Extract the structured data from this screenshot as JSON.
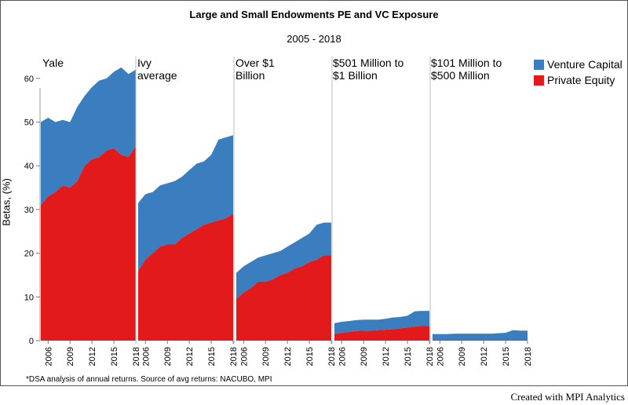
{
  "chart_data": {
    "type": "area",
    "title": "Large and Small Endowments PE and VC Exposure",
    "subtitle": "2005 - 2018",
    "ylabel": "Betas, (%)",
    "ylim": [
      0,
      65
    ],
    "yticks": [
      0,
      10,
      20,
      30,
      40,
      50,
      60
    ],
    "x": [
      2005,
      2006,
      2007,
      2008,
      2009,
      2010,
      2011,
      2012,
      2013,
      2014,
      2015,
      2016,
      2017,
      2018
    ],
    "xticks": [
      2006,
      2009,
      2012,
      2015,
      2018
    ],
    "stacked": true,
    "legend": [
      {
        "name": "Venture Capital",
        "color": "#3a7ebf"
      },
      {
        "name": "Private Equity",
        "color": "#e31a1c"
      }
    ],
    "panels": [
      {
        "label": "Yale",
        "series": [
          {
            "name": "Private Equity",
            "values": [
              31,
              33,
              34,
              35.5,
              35,
              36.5,
              40,
              41.5,
              42,
              43.5,
              44,
              42.5,
              42,
              44.5
            ]
          },
          {
            "name": "Venture Capital",
            "values": [
              19,
              18,
              16,
              15,
              15,
              17,
              16,
              16.5,
              17.5,
              16.5,
              17.5,
              20,
              19,
              17.5
            ]
          }
        ]
      },
      {
        "label": "Ivy\naverage",
        "series": [
          {
            "name": "Private Equity",
            "values": [
              16,
              18.5,
              20,
              21.5,
              22,
              22,
              23.5,
              24.5,
              25.5,
              26.5,
              27,
              27.5,
              28,
              29
            ]
          },
          {
            "name": "Venture Capital",
            "values": [
              15.5,
              15,
              14,
              14,
              14,
              14.5,
              14,
              14.5,
              15,
              14.5,
              15.5,
              18.5,
              18.5,
              18
            ]
          }
        ]
      },
      {
        "label": "Over $1\nBillion",
        "series": [
          {
            "name": "Private Equity",
            "values": [
              9.5,
              11,
              12,
              13.5,
              13.5,
              14,
              15,
              15.5,
              16.5,
              17,
              18,
              18.5,
              19.5,
              19.5
            ]
          },
          {
            "name": "Venture Capital",
            "values": [
              6,
              6,
              6,
              5.5,
              6,
              6,
              5.5,
              6,
              6,
              6.5,
              6.5,
              8,
              7.5,
              7.5
            ]
          }
        ]
      },
      {
        "label": "$501 Million to\n$1 Billion",
        "series": [
          {
            "name": "Private Equity",
            "values": [
              1.5,
              1.8,
              2,
              2.2,
              2.3,
              2.3,
              2.4,
              2.5,
              2.6,
              2.8,
              3,
              3.2,
              3.4,
              3.4
            ]
          },
          {
            "name": "Venture Capital",
            "values": [
              2.5,
              2.5,
              2.5,
              2.5,
              2.5,
              2.5,
              2.4,
              2.5,
              2.7,
              2.6,
              2.7,
              3.5,
              3.4,
              3.4
            ]
          }
        ]
      },
      {
        "label": "$101 Million to\n$500 Million",
        "series": [
          {
            "name": "Private Equity",
            "values": [
              0.1,
              0.1,
              0.1,
              0.1,
              0.1,
              0.1,
              0.1,
              0.1,
              0.1,
              0.1,
              0.1,
              0.1,
              0.1,
              0.1
            ]
          },
          {
            "name": "Venture Capital",
            "values": [
              1.4,
              1.4,
              1.4,
              1.5,
              1.5,
              1.5,
              1.5,
              1.5,
              1.5,
              1.6,
              1.7,
              2.3,
              2.2,
              2.2
            ]
          }
        ]
      }
    ]
  },
  "footnote": "*DSA analysis of annual returns. Source of avg returns: NACUBO, MPI",
  "credit": "Created with MPI Analytics"
}
